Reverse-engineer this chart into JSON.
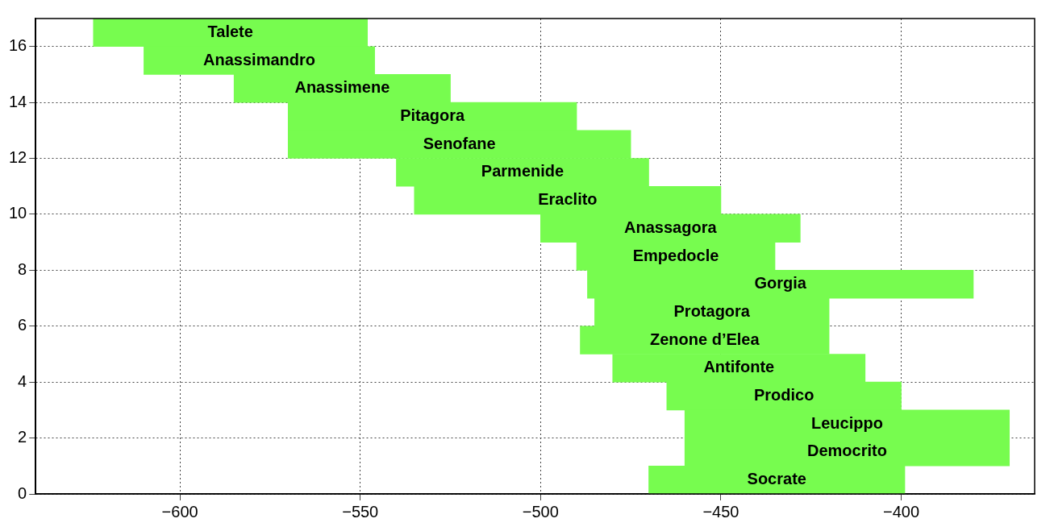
{
  "chart_data": {
    "type": "bar",
    "orientation": "horizontal",
    "x": [
      16.5,
      15.5,
      14.5,
      13.5,
      12.5,
      11.5,
      10.5,
      9.5,
      8.5,
      7.5,
      6.5,
      5.5,
      4.5,
      3.5,
      2.5,
      1.5,
      0.5
    ],
    "value_labels": [
      "Talete",
      "Anassimandro",
      "Anassimene",
      "Pitagora",
      "Senofane",
      "Parmenide",
      "Eraclito",
      "Anassagora",
      "Empedocle",
      "Gorgia",
      "Protagora",
      "Zenone d’Elea",
      "Antifonte",
      "Prodico",
      "Leucippo",
      "Democrito",
      "Socrate"
    ],
    "base": [
      -624,
      -610,
      -585,
      -570,
      -570,
      -540,
      -535,
      -500,
      -490,
      -487,
      -485,
      -489,
      -480,
      -465,
      -460,
      -460,
      -470
    ],
    "values": [
      76,
      64,
      60,
      80,
      95,
      70,
      85,
      72,
      55,
      107,
      65,
      69,
      70,
      65,
      90,
      90,
      71
    ],
    "color": "#77fc4f",
    "xlim": [
      -640,
      -363
    ],
    "xticks": [
      -600,
      -550,
      -500,
      -450,
      -400
    ],
    "ylim": [
      0,
      17
    ],
    "yticks": [
      0,
      2,
      4,
      6,
      8,
      10,
      12,
      14,
      16
    ],
    "grid": true,
    "legend": false
  }
}
